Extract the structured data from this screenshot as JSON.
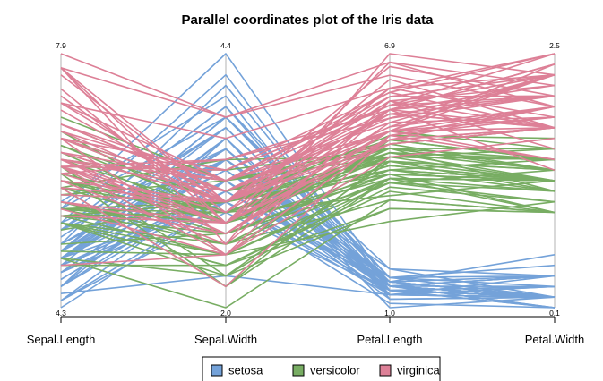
{
  "chart_data": {
    "type": "parallel_coordinates",
    "title": "Parallel coordinates plot of the Iris data",
    "axes": [
      {
        "name": "Sepal.Length",
        "min": 4.3,
        "max": 7.9,
        "min_label": "4.3",
        "max_label": "7.9"
      },
      {
        "name": "Sepal.Width",
        "min": 2.0,
        "max": 4.4,
        "min_label": "2.0",
        "max_label": "4.4"
      },
      {
        "name": "Petal.Length",
        "min": 1.0,
        "max": 6.9,
        "min_label": "1.0",
        "max_label": "6.9"
      },
      {
        "name": "Petal.Width",
        "min": 0.1,
        "max": 2.5,
        "min_label": "0.1",
        "max_label": "2.5"
      }
    ],
    "legend": {
      "position": "bottom",
      "items": [
        {
          "name": "setosa",
          "color": "#74a2d9"
        },
        {
          "name": "versicolor",
          "color": "#78ad63"
        },
        {
          "name": "virginica",
          "color": "#dd8097"
        }
      ]
    },
    "series": [
      {
        "name": "setosa",
        "color": "#74a2d9",
        "values": [
          [
            5.1,
            3.5,
            1.4,
            0.2
          ],
          [
            4.9,
            3.0,
            1.4,
            0.2
          ],
          [
            4.7,
            3.2,
            1.3,
            0.2
          ],
          [
            4.6,
            3.1,
            1.5,
            0.2
          ],
          [
            5.0,
            3.6,
            1.4,
            0.2
          ],
          [
            5.4,
            3.9,
            1.7,
            0.4
          ],
          [
            4.6,
            3.4,
            1.4,
            0.3
          ],
          [
            5.0,
            3.4,
            1.5,
            0.2
          ],
          [
            4.4,
            2.9,
            1.4,
            0.2
          ],
          [
            4.9,
            3.1,
            1.5,
            0.1
          ],
          [
            5.4,
            3.7,
            1.5,
            0.2
          ],
          [
            4.8,
            3.4,
            1.6,
            0.2
          ],
          [
            4.8,
            3.0,
            1.4,
            0.1
          ],
          [
            4.3,
            3.0,
            1.1,
            0.1
          ],
          [
            5.8,
            4.0,
            1.2,
            0.2
          ],
          [
            5.7,
            4.4,
            1.5,
            0.4
          ],
          [
            5.4,
            3.9,
            1.3,
            0.4
          ],
          [
            5.1,
            3.5,
            1.4,
            0.3
          ],
          [
            5.7,
            3.8,
            1.7,
            0.3
          ],
          [
            5.1,
            3.8,
            1.5,
            0.3
          ],
          [
            5.4,
            3.4,
            1.7,
            0.2
          ],
          [
            5.1,
            3.7,
            1.5,
            0.4
          ],
          [
            4.6,
            3.6,
            1.0,
            0.2
          ],
          [
            5.1,
            3.3,
            1.7,
            0.5
          ],
          [
            4.8,
            3.4,
            1.9,
            0.2
          ],
          [
            5.0,
            3.0,
            1.6,
            0.2
          ],
          [
            5.0,
            3.4,
            1.6,
            0.4
          ],
          [
            5.2,
            3.5,
            1.5,
            0.2
          ],
          [
            5.2,
            3.4,
            1.4,
            0.2
          ],
          [
            4.7,
            3.2,
            1.6,
            0.2
          ],
          [
            4.8,
            3.1,
            1.6,
            0.2
          ],
          [
            5.4,
            3.4,
            1.5,
            0.4
          ],
          [
            5.2,
            4.1,
            1.5,
            0.1
          ],
          [
            5.5,
            4.2,
            1.4,
            0.2
          ],
          [
            4.9,
            3.1,
            1.5,
            0.2
          ],
          [
            5.0,
            3.2,
            1.2,
            0.2
          ],
          [
            5.5,
            3.5,
            1.3,
            0.2
          ],
          [
            4.9,
            3.6,
            1.4,
            0.1
          ],
          [
            4.4,
            3.0,
            1.3,
            0.2
          ],
          [
            5.1,
            3.4,
            1.5,
            0.2
          ],
          [
            5.0,
            3.5,
            1.3,
            0.3
          ],
          [
            4.5,
            2.3,
            1.3,
            0.3
          ],
          [
            4.4,
            3.2,
            1.3,
            0.2
          ],
          [
            5.0,
            3.5,
            1.6,
            0.6
          ],
          [
            5.1,
            3.8,
            1.9,
            0.4
          ],
          [
            4.8,
            3.0,
            1.4,
            0.3
          ],
          [
            5.1,
            3.8,
            1.6,
            0.2
          ],
          [
            4.6,
            3.2,
            1.4,
            0.2
          ],
          [
            5.3,
            3.7,
            1.5,
            0.2
          ],
          [
            5.0,
            3.3,
            1.4,
            0.2
          ]
        ]
      },
      {
        "name": "versicolor",
        "color": "#78ad63",
        "values": [
          [
            7.0,
            3.2,
            4.7,
            1.4
          ],
          [
            6.4,
            3.2,
            4.5,
            1.5
          ],
          [
            6.9,
            3.1,
            4.9,
            1.5
          ],
          [
            5.5,
            2.3,
            4.0,
            1.3
          ],
          [
            6.5,
            2.8,
            4.6,
            1.5
          ],
          [
            5.7,
            2.8,
            4.5,
            1.3
          ],
          [
            6.3,
            3.3,
            4.7,
            1.6
          ],
          [
            4.9,
            2.4,
            3.3,
            1.0
          ],
          [
            6.6,
            2.9,
            4.6,
            1.3
          ],
          [
            5.2,
            2.7,
            3.9,
            1.4
          ],
          [
            5.0,
            2.0,
            3.5,
            1.0
          ],
          [
            5.9,
            3.0,
            4.2,
            1.5
          ],
          [
            6.0,
            2.2,
            4.0,
            1.0
          ],
          [
            6.1,
            2.9,
            4.7,
            1.4
          ],
          [
            5.6,
            2.9,
            3.6,
            1.3
          ],
          [
            6.7,
            3.1,
            4.4,
            1.4
          ],
          [
            5.6,
            3.0,
            4.5,
            1.5
          ],
          [
            5.8,
            2.7,
            4.1,
            1.0
          ],
          [
            6.2,
            2.2,
            4.5,
            1.5
          ],
          [
            5.6,
            2.5,
            3.9,
            1.1
          ],
          [
            5.9,
            3.2,
            4.8,
            1.8
          ],
          [
            6.1,
            2.8,
            4.0,
            1.3
          ],
          [
            6.3,
            2.5,
            4.9,
            1.5
          ],
          [
            6.1,
            2.8,
            4.7,
            1.2
          ],
          [
            6.4,
            2.9,
            4.3,
            1.3
          ],
          [
            6.6,
            3.0,
            4.4,
            1.4
          ],
          [
            6.8,
            2.8,
            4.8,
            1.4
          ],
          [
            6.7,
            3.0,
            5.0,
            1.7
          ],
          [
            6.0,
            2.9,
            4.5,
            1.5
          ],
          [
            5.7,
            2.6,
            3.5,
            1.0
          ],
          [
            5.5,
            2.4,
            3.8,
            1.1
          ],
          [
            5.5,
            2.4,
            3.7,
            1.0
          ],
          [
            5.8,
            2.7,
            3.9,
            1.2
          ],
          [
            6.0,
            2.7,
            5.1,
            1.6
          ],
          [
            5.4,
            3.0,
            4.5,
            1.5
          ],
          [
            6.0,
            3.4,
            4.5,
            1.6
          ],
          [
            6.7,
            3.1,
            4.7,
            1.5
          ],
          [
            6.3,
            2.3,
            4.4,
            1.3
          ],
          [
            5.6,
            3.0,
            4.1,
            1.3
          ],
          [
            5.5,
            2.5,
            4.0,
            1.3
          ],
          [
            5.5,
            2.6,
            4.4,
            1.2
          ],
          [
            6.1,
            3.0,
            4.6,
            1.4
          ],
          [
            5.8,
            2.6,
            4.0,
            1.2
          ],
          [
            5.0,
            2.3,
            3.3,
            1.0
          ],
          [
            5.6,
            2.7,
            4.2,
            1.3
          ],
          [
            5.7,
            3.0,
            4.2,
            1.2
          ],
          [
            5.7,
            2.9,
            4.2,
            1.3
          ],
          [
            6.2,
            2.9,
            4.3,
            1.3
          ],
          [
            5.1,
            2.5,
            3.0,
            1.1
          ],
          [
            5.7,
            2.8,
            4.1,
            1.3
          ]
        ]
      },
      {
        "name": "virginica",
        "color": "#dd8097",
        "values": [
          [
            6.3,
            3.3,
            6.0,
            2.5
          ],
          [
            5.8,
            2.7,
            5.1,
            1.9
          ],
          [
            7.1,
            3.0,
            5.9,
            2.1
          ],
          [
            6.3,
            2.9,
            5.6,
            1.8
          ],
          [
            6.5,
            3.0,
            5.8,
            2.2
          ],
          [
            7.6,
            3.0,
            6.6,
            2.1
          ],
          [
            4.9,
            2.5,
            4.5,
            1.7
          ],
          [
            7.3,
            2.9,
            6.3,
            1.8
          ],
          [
            6.7,
            2.5,
            5.8,
            1.8
          ],
          [
            7.2,
            3.6,
            6.1,
            2.5
          ],
          [
            6.5,
            3.2,
            5.1,
            2.0
          ],
          [
            6.4,
            2.7,
            5.3,
            1.9
          ],
          [
            6.8,
            3.0,
            5.5,
            2.1
          ],
          [
            5.7,
            2.5,
            5.0,
            2.0
          ],
          [
            5.8,
            2.8,
            5.1,
            2.4
          ],
          [
            6.4,
            3.2,
            5.3,
            2.3
          ],
          [
            6.5,
            3.0,
            5.5,
            1.8
          ],
          [
            7.7,
            3.8,
            6.7,
            2.2
          ],
          [
            7.7,
            2.6,
            6.9,
            2.3
          ],
          [
            6.0,
            2.2,
            5.0,
            1.5
          ],
          [
            6.9,
            3.2,
            5.7,
            2.3
          ],
          [
            5.6,
            2.8,
            4.9,
            2.0
          ],
          [
            7.7,
            2.8,
            6.7,
            2.0
          ],
          [
            6.3,
            2.7,
            4.9,
            1.8
          ],
          [
            6.7,
            3.3,
            5.7,
            2.1
          ],
          [
            7.2,
            3.2,
            6.0,
            1.8
          ],
          [
            6.2,
            2.8,
            4.8,
            1.8
          ],
          [
            6.1,
            3.0,
            4.9,
            1.8
          ],
          [
            6.4,
            2.8,
            5.6,
            2.1
          ],
          [
            7.2,
            3.0,
            5.8,
            1.6
          ],
          [
            7.4,
            2.8,
            6.1,
            1.9
          ],
          [
            7.9,
            3.8,
            6.4,
            2.0
          ],
          [
            6.4,
            2.8,
            5.6,
            2.2
          ],
          [
            6.3,
            2.8,
            5.1,
            1.5
          ],
          [
            6.1,
            2.6,
            5.6,
            1.4
          ],
          [
            7.7,
            3.0,
            6.1,
            2.3
          ],
          [
            6.3,
            3.4,
            5.6,
            2.4
          ],
          [
            6.4,
            3.1,
            5.5,
            1.8
          ],
          [
            6.0,
            3.0,
            4.8,
            1.8
          ],
          [
            6.9,
            3.1,
            5.4,
            2.1
          ],
          [
            6.7,
            3.1,
            5.6,
            2.4
          ],
          [
            6.9,
            3.1,
            5.1,
            2.3
          ],
          [
            5.8,
            2.7,
            5.1,
            1.9
          ],
          [
            6.8,
            3.2,
            5.9,
            2.3
          ],
          [
            6.7,
            3.3,
            5.7,
            2.5
          ],
          [
            6.7,
            3.0,
            5.2,
            2.3
          ],
          [
            6.3,
            2.5,
            5.0,
            1.9
          ],
          [
            6.5,
            3.0,
            5.2,
            2.0
          ],
          [
            6.2,
            3.4,
            5.4,
            2.3
          ],
          [
            5.9,
            3.0,
            5.1,
            1.8
          ]
        ]
      }
    ]
  }
}
